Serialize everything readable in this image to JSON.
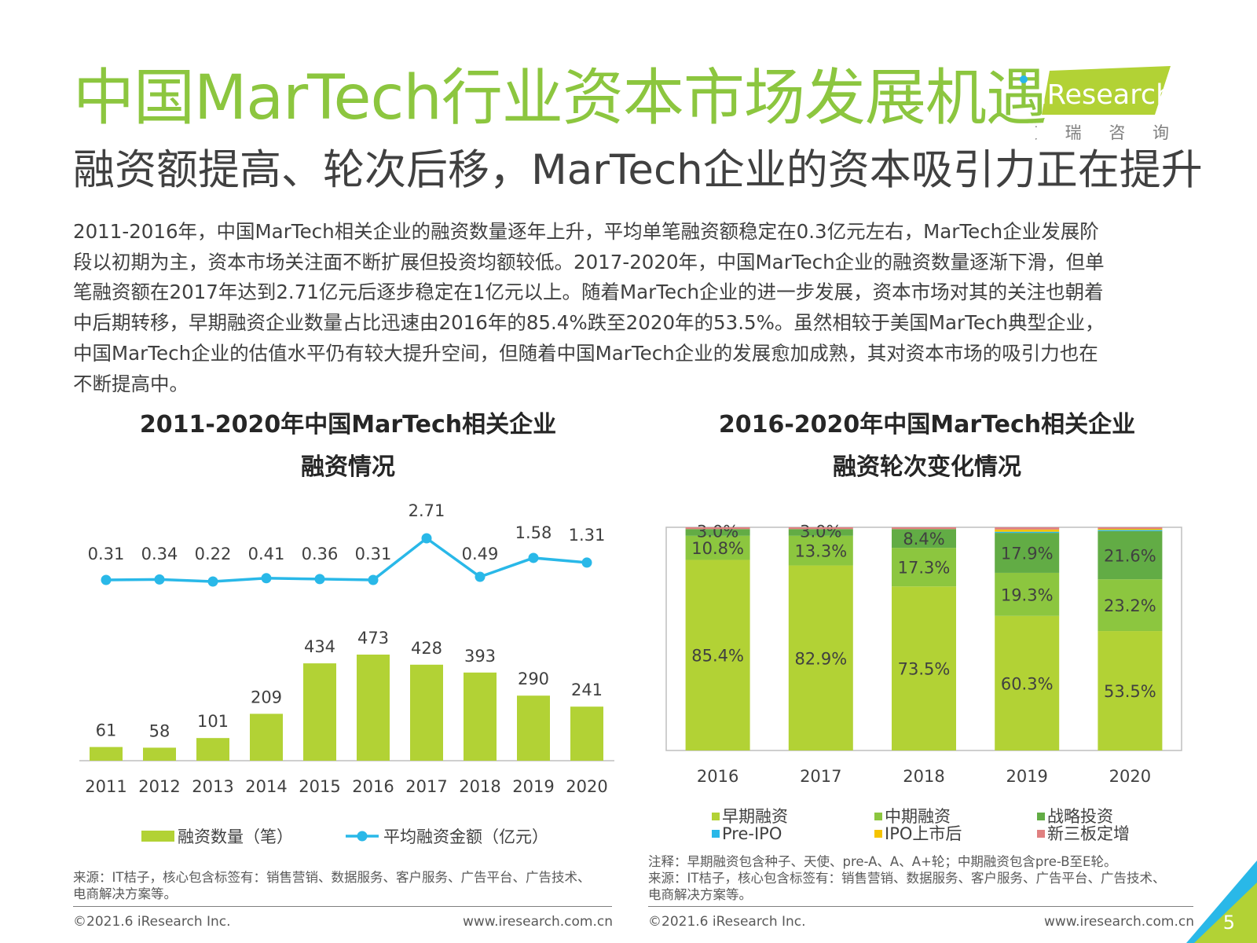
{
  "header": {
    "title": "中国MarTech行业资本市场发展机遇",
    "subtitle": "融资额提高、轮次后移，MarTech企业的资本吸引力正在提升",
    "logo_text": "iResearch",
    "logo_sub": "艾 瑞 咨 询"
  },
  "body": {
    "lines": [
      "2011-2016年，中国MarTech相关企业的融资数量逐年上升，平均单笔融资额稳定在0.3亿元左右，MarTech企业发展阶",
      "段以初期为主，资本市场关注面不断扩展但投资均额较低。2017-2020年，中国MarTech企业的融资数量逐渐下滑，但单",
      "笔融资额在2017年达到2.71亿元后逐步稳定在1亿元以上。随着MarTech企业的进一步发展，资本市场对其的关注也朝着",
      "中后期转移，早期融资企业数量占比迅速由2016年的85.4%跌至2020年的53.5%。虽然相较于美国MarTech典型企业，",
      "中国MarTech企业的估值水平仍有较大提升空间，但随着中国MarTech企业的发展愈加成熟，其对资本市场的吸引力也在",
      "不断提高中。"
    ]
  },
  "chart_data": [
    {
      "type": "bar",
      "title_line1": "2011-2020年中国MarTech相关企业",
      "title_line2": "融资情况",
      "categories": [
        "2011",
        "2012",
        "2013",
        "2014",
        "2015",
        "2016",
        "2017",
        "2018",
        "2019",
        "2020"
      ],
      "series": [
        {
          "name": "融资数量（笔）",
          "type": "bar",
          "values": [
            61,
            58,
            101,
            209,
            434,
            473,
            428,
            393,
            290,
            241
          ]
        },
        {
          "name": "平均融资金额（亿元）",
          "type": "line",
          "values": [
            0.31,
            0.34,
            0.22,
            0.41,
            0.36,
            0.31,
            2.71,
            0.49,
            1.58,
            1.31
          ]
        }
      ],
      "colors": {
        "bar": "#b2d235",
        "line": "#29b8e8"
      }
    },
    {
      "type": "bar",
      "stacked": true,
      "title_line1": "2016-2020年中国MarTech相关企业",
      "title_line2": "融资轮次变化情况",
      "categories": [
        "2016",
        "2017",
        "2018",
        "2019",
        "2020"
      ],
      "series": [
        {
          "name": "早期融资",
          "values": [
            85.4,
            82.9,
            73.5,
            60.3,
            53.5
          ],
          "labels": [
            "85.4%",
            "82.9%",
            "73.5%",
            "60.3%",
            "53.5%"
          ],
          "color": "#b2d235"
        },
        {
          "name": "中期融资",
          "values": [
            10.8,
            13.3,
            17.3,
            19.3,
            23.2
          ],
          "labels": [
            "10.8%",
            "13.3%",
            "17.3%",
            "19.3%",
            "23.2%"
          ],
          "color": "#8cc63f"
        },
        {
          "name": "战略投资",
          "values": [
            3.0,
            3.0,
            8.4,
            17.9,
            21.6
          ],
          "labels": [
            "3.0%",
            "3.0%",
            "8.4%",
            "17.9%",
            "21.6%"
          ],
          "color": "#62ac45"
        },
        {
          "name": "Pre-IPO",
          "values": [
            0,
            0,
            0,
            0.5,
            0.5
          ],
          "labels": [
            "",
            "",
            "",
            "",
            ""
          ],
          "color": "#29b8e8"
        },
        {
          "name": "IPO上市后",
          "values": [
            0,
            0,
            0,
            1.0,
            0.5
          ],
          "labels": [
            "",
            "",
            "",
            "",
            ""
          ],
          "color": "#f5c400"
        },
        {
          "name": "新三板定增",
          "values": [
            0.8,
            0.8,
            0.8,
            1.0,
            0.7
          ],
          "labels": [
            "",
            "",
            "",
            "",
            ""
          ],
          "color": "#e08080"
        }
      ],
      "ylim": [
        0,
        100
      ]
    }
  ],
  "footer": {
    "source_left": [
      "来源：IT桔子，核心包含标签有：销售营销、数据服务、客户服务、广告平台、广告技术、",
      "电商解决方案等。"
    ],
    "source_right": [
      "注释：早期融资包含种子、天使、pre-A、A、A+轮；中期融资包含pre-B至E轮。",
      "来源：IT桔子，核心包含标签有：销售营销、数据服务、客户服务、广告平台、广告技术、",
      "电商解决方案等。"
    ],
    "copyright": "©2021.6 iResearch Inc.",
    "url": "www.iresearch.com.cn",
    "page": "5"
  }
}
